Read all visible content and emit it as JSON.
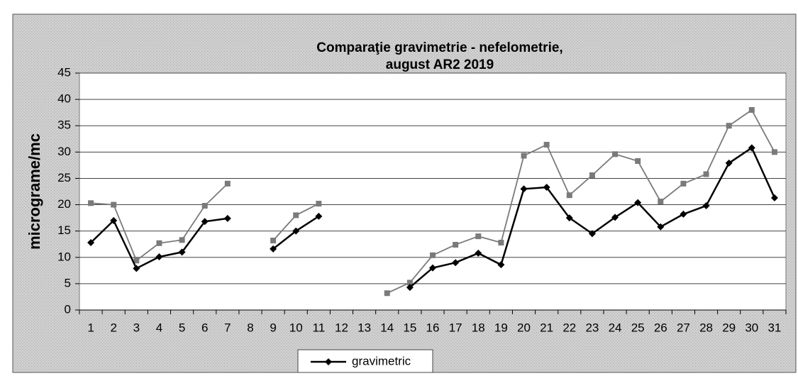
{
  "chart_data": {
    "type": "line",
    "title": [
      "Comparaţie gravimetrie - nefelometrie,",
      "august AR2 2019"
    ],
    "y_label": "micrograme/mc",
    "categories": [
      "1",
      "2",
      "3",
      "4",
      "5",
      "6",
      "7",
      "8",
      "9",
      "10",
      "11",
      "12",
      "13",
      "14",
      "15",
      "16",
      "17",
      "18",
      "19",
      "20",
      "21",
      "22",
      "23",
      "24",
      "25",
      "26",
      "27",
      "28",
      "29",
      "30",
      "31"
    ],
    "series": [
      {
        "name": "gravimetric",
        "color": "#000000",
        "marker": "diamond",
        "values": [
          12.8,
          17,
          7.9,
          10.1,
          11,
          16.8,
          17.4,
          null,
          11.6,
          15,
          17.8,
          null,
          null,
          null,
          4.3,
          8,
          9,
          10.8,
          8.6,
          23,
          23.3,
          17.5,
          14.5,
          17.6,
          20.4,
          15.8,
          18.2,
          19.8,
          27.9,
          30.8,
          21.3
        ]
      },
      {
        "color": "#7a7a7a",
        "marker": "square",
        "values": [
          20.3,
          20,
          9.4,
          12.7,
          13.3,
          19.8,
          24,
          null,
          13.2,
          18,
          20.2,
          null,
          null,
          3.2,
          5.2,
          10.4,
          12.4,
          14,
          12.8,
          29.3,
          31.4,
          21.8,
          25.6,
          29.6,
          28.3,
          20.6,
          24,
          25.8,
          35,
          38,
          30
        ]
      }
    ],
    "ylim": [
      0,
      45
    ],
    "yticks": [
      0,
      5,
      10,
      15,
      20,
      25,
      30,
      35,
      40,
      45
    ],
    "grid": true,
    "legend": "bottom"
  }
}
